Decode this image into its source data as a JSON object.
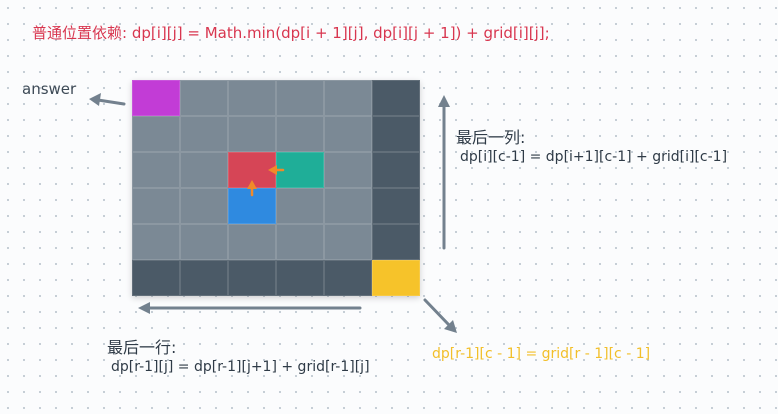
{
  "texts": {
    "top_formula": "普通位置依赖:  dp[i][j] = Math.min(dp[i + 1][j], dp[i][j + 1]) + grid[i][j];",
    "answer": "answer",
    "last_col_title": "最后一列:",
    "last_col_formula": "dp[i][c-1] = dp[i+1][c-1] + grid[i][c-1]",
    "last_row_title": "最后一行:",
    "last_row_formula": "dp[r-1][j] = dp[r-1][j+1] + grid[r-1][j]",
    "corner_formula": "dp[r-1][c - 1] = grid[r - 1][c - 1]"
  },
  "colors": {
    "top_formula": "#d8364f",
    "corner_formula": "#f2bf2a",
    "cell_normal": "#7b8995",
    "cell_edge": "#4b5a67",
    "answer_cell": "#c23cd6",
    "current_cell": "#d64556",
    "right_neighbor": "#1fae98",
    "down_neighbor": "#2f8ae0",
    "corner_cell": "#f6c32a",
    "arrow_gray": "#73818e",
    "arrow_orange": "#f08a2a"
  },
  "grid": {
    "rows": 6,
    "cols": 6,
    "cells": [
      [
        "answer",
        "normal",
        "normal",
        "normal",
        "normal",
        "edge"
      ],
      [
        "normal",
        "normal",
        "normal",
        "normal",
        "normal",
        "edge"
      ],
      [
        "normal",
        "normal",
        "current",
        "right",
        "normal",
        "edge"
      ],
      [
        "normal",
        "normal",
        "down",
        "normal",
        "normal",
        "edge"
      ],
      [
        "normal",
        "normal",
        "normal",
        "normal",
        "normal",
        "edge"
      ],
      [
        "edge",
        "edge",
        "edge",
        "edge",
        "edge",
        "corner"
      ]
    ]
  }
}
